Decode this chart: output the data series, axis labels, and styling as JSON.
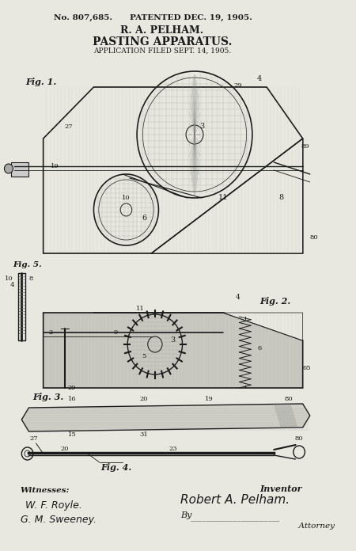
{
  "bg_color": "#e8e8e0",
  "title_line1": "No. 807,685.",
  "title_line2": "PATENTED DEC. 19, 1905.",
  "title_line3": "R. A. PELHAM.",
  "title_line4": "PASTING APPARATUS.",
  "title_line5": "APPLICATION FILED SEPT. 14, 1905.",
  "fig1_label": "Fig. 1.",
  "fig2_label": "Fig. 2.",
  "fig3_label": "Fig. 3.",
  "fig4_label": "Fig. 4.",
  "witnesses_label": "Witnesses:",
  "witness1": "W. F. Royle.",
  "witness2": "G. M. Sweeney.",
  "inventor_label": "Inventor",
  "inventor_name": "Robert A. Pelham.",
  "by_label": "By",
  "attorney_label": "Attorney",
  "ink_color": "#1a1a1a",
  "light_ink": "#555555",
  "hatch_color": "#444444"
}
